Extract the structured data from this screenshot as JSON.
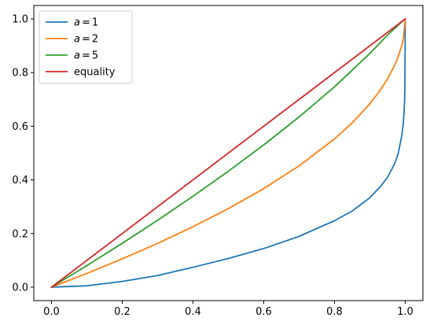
{
  "chart_data": {
    "type": "line",
    "title": "",
    "xlabel": "",
    "ylabel": "",
    "xlim": [
      -0.05,
      1.05
    ],
    "ylim": [
      -0.05,
      1.05
    ],
    "grid": false,
    "legend_position": "top-left",
    "x_ticks": [
      0.0,
      0.2,
      0.4,
      0.6,
      0.8,
      1.0
    ],
    "x_tick_labels": [
      "0.0",
      "0.2",
      "0.4",
      "0.6",
      "0.8",
      "1.0"
    ],
    "y_ticks": [
      0.0,
      0.2,
      0.4,
      0.6,
      0.8,
      1.0
    ],
    "y_tick_labels": [
      "0.0",
      "0.2",
      "0.4",
      "0.6",
      "0.8",
      "1.0"
    ],
    "series": [
      {
        "name": "a = 1",
        "legend_math": true,
        "legend_var": "a",
        "legend_op": "=",
        "legend_value": "1",
        "color": "#1f77b4",
        "x": [
          0.0,
          0.1,
          0.2,
          0.3,
          0.4,
          0.5,
          0.6,
          0.7,
          0.8,
          0.85,
          0.9,
          0.93,
          0.95,
          0.97,
          0.98,
          0.99,
          0.995,
          0.998,
          0.999,
          1.0
        ],
        "y": [
          0.0,
          0.0052,
          0.0215,
          0.0436,
          0.0744,
          0.1069,
          0.1442,
          0.1895,
          0.2477,
          0.284,
          0.3334,
          0.3753,
          0.4098,
          0.4607,
          0.4975,
          0.5633,
          0.6164,
          0.69,
          0.74,
          1.0
        ]
      },
      {
        "name": "a = 2",
        "legend_math": true,
        "legend_var": "a",
        "legend_op": "=",
        "legend_value": "2",
        "color": "#ff7f0e",
        "x": [
          0.0,
          0.1,
          0.2,
          0.3,
          0.4,
          0.5,
          0.6,
          0.7,
          0.8,
          0.85,
          0.9,
          0.93,
          0.95,
          0.97,
          0.98,
          0.99,
          0.995,
          1.0
        ],
        "y": [
          0.0,
          0.0513,
          0.1056,
          0.1633,
          0.2254,
          0.2929,
          0.3675,
          0.4523,
          0.5528,
          0.6127,
          0.6838,
          0.7354,
          0.7764,
          0.8268,
          0.8586,
          0.9,
          0.9293,
          1.0
        ]
      },
      {
        "name": "a = 5",
        "legend_math": true,
        "legend_var": "a",
        "legend_op": "=",
        "legend_value": "5",
        "color": "#2ca02c",
        "x": [
          0.0,
          0.1,
          0.2,
          0.3,
          0.4,
          0.5,
          0.6,
          0.7,
          0.8,
          0.9,
          0.95,
          0.98,
          1.0
        ],
        "y": [
          0.0,
          0.0805,
          0.1636,
          0.2496,
          0.339,
          0.4323,
          0.5304,
          0.6346,
          0.747,
          0.8713,
          0.94,
          0.9765,
          1.0
        ]
      },
      {
        "name": "equality",
        "legend_math": false,
        "color": "#d62728",
        "x": [
          0.0,
          1.0
        ],
        "y": [
          0.0,
          1.0
        ]
      }
    ]
  }
}
